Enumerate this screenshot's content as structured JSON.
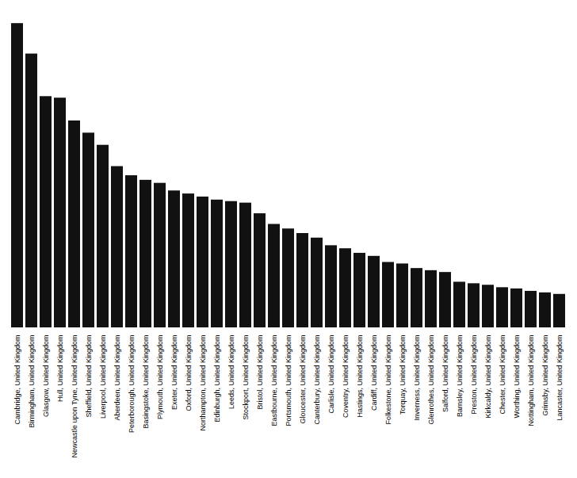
{
  "chart_data": {
    "type": "bar",
    "categories": [
      "Cambridge, United Kingdom",
      "Birmingham, United Kingdom",
      "Glasgow, United Kingdom",
      "Hull, United Kingdom",
      "Newcastle upon Tyne, United Kingdom",
      "Sheffield, United Kingdom",
      "Liverpool, United Kingdom",
      "Aberdeen, United Kingdom",
      "Peterborough, United Kingdom",
      "Basingstoke, United Kingdom",
      "Plymouth, United Kingdom",
      "Exeter, United Kingdom",
      "Oxford, United Kingdom",
      "Northampton, United Kingdom",
      "Edinburgh, United Kingdom",
      "Leeds, United Kingdom",
      "Stockport, United Kingdom",
      "Bristol, United Kingdom",
      "Eastbourne, United Kingdom",
      "Portsmouth, United Kingdom",
      "Gloucester, United Kingdom",
      "Canterbury, United Kingdom",
      "Carlisle, United Kingdom",
      "Coventry, United Kingdom",
      "Hastings, United Kingdom",
      "Cardiff, United Kingdom",
      "Folkestone, United Kingdom",
      "Torquay, United Kingdom",
      "Inverness, United Kingdom",
      "Glenrothes, United Kingdom",
      "Salford, United Kingdom",
      "Barnsley, United Kingdom",
      "Preston, United Kingdom",
      "Kirkcaldy, United Kingdom",
      "Chester, United Kingdom",
      "Worthing, United Kingdom",
      "Nottingham, United Kingdom",
      "Grimsby, United Kingdom",
      "Lancaster, United Kingdom"
    ],
    "values": [
      1000,
      900,
      760,
      755,
      680,
      640,
      600,
      530,
      500,
      485,
      475,
      450,
      440,
      430,
      420,
      415,
      410,
      375,
      340,
      325,
      310,
      295,
      270,
      260,
      245,
      235,
      215,
      210,
      195,
      188,
      182,
      150,
      145,
      140,
      132,
      128,
      120,
      115,
      110
    ],
    "color": "#111111",
    "ylim": [
      0,
      1050
    ],
    "grid": false,
    "tick_labels": "x"
  }
}
